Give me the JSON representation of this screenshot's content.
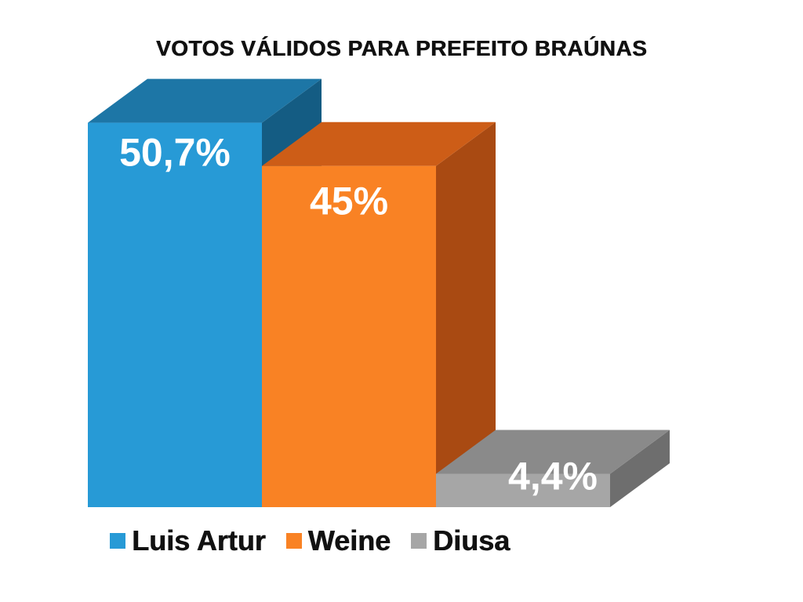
{
  "chart_data": {
    "type": "bar",
    "title": "VOTOS VÁLIDOS PARA PREFEITO BRAÚNAS",
    "categories": [
      "Luis Artur",
      "Weine",
      "Diusa"
    ],
    "values": [
      50.7,
      45,
      4.4
    ],
    "value_labels": [
      "50,7%",
      "45%",
      "4,4%"
    ],
    "unit": "%",
    "ylim": [
      0,
      52
    ],
    "grid": false,
    "style": "3d",
    "legend_position": "bottom",
    "colors": {
      "front": [
        "#279ad6",
        "#f98224",
        "#a6a6a6"
      ],
      "top": [
        "#1d76a6",
        "#cd5d17",
        "#8a8a8a"
      ],
      "side": [
        "#145c83",
        "#a94a12",
        "#6e6e6e"
      ]
    }
  }
}
